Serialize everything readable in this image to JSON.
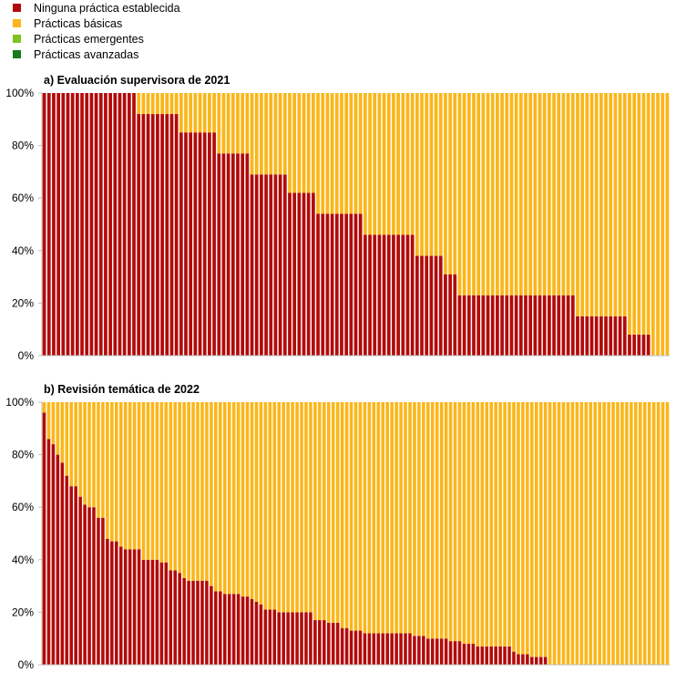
{
  "legend": [
    {
      "label": "Ninguna práctica establecida",
      "color": "#b20a0a"
    },
    {
      "label": "Prácticas básicas",
      "color": "#fbb619"
    },
    {
      "label": "Prácticas emergentes",
      "color": "#7ec31f"
    },
    {
      "label": "Prácticas avanzadas",
      "color": "#1a7a1a"
    }
  ],
  "chart_data": [
    {
      "type": "bar",
      "stacked": true,
      "title": "a) Evaluación supervisora de 2021",
      "ylim": [
        0,
        100
      ],
      "yticks": [
        "0%",
        "20%",
        "40%",
        "60%",
        "80%",
        "100%"
      ],
      "grid": false,
      "legend_position": "top-left",
      "series": [
        {
          "name": "Ninguna práctica establecida",
          "values": [
            100,
            100,
            100,
            100,
            100,
            100,
            100,
            100,
            100,
            100,
            100,
            100,
            100,
            100,
            100,
            100,
            100,
            100,
            100,
            100,
            92,
            92,
            92,
            92,
            92,
            92,
            92,
            92,
            92,
            85,
            85,
            85,
            85,
            85,
            85,
            85,
            85,
            77,
            77,
            77,
            77,
            77,
            77,
            77,
            69,
            69,
            69,
            69,
            69,
            69,
            69,
            69,
            62,
            62,
            62,
            62,
            62,
            62,
            54,
            54,
            54,
            54,
            54,
            54,
            54,
            54,
            54,
            54,
            46,
            46,
            46,
            46,
            46,
            46,
            46,
            46,
            46,
            46,
            46,
            38,
            38,
            38,
            38,
            38,
            38,
            31,
            31,
            31,
            23,
            23,
            23,
            23,
            23,
            23,
            23,
            23,
            23,
            23,
            23,
            23,
            23,
            23,
            23,
            23,
            23,
            23,
            23,
            23,
            23,
            23,
            23,
            23,
            23,
            15,
            15,
            15,
            15,
            15,
            15,
            15,
            15,
            15,
            15,
            15,
            8,
            8,
            8,
            8,
            8,
            0,
            0,
            0,
            0
          ]
        },
        {
          "name": "Prácticas básicas",
          "values": [
            0,
            0,
            0,
            0,
            0,
            0,
            0,
            0,
            0,
            0,
            0,
            0,
            0,
            0,
            0,
            0,
            0,
            0,
            0,
            0,
            8,
            8,
            8,
            8,
            8,
            8,
            8,
            8,
            8,
            15,
            15,
            15,
            15,
            15,
            15,
            15,
            15,
            23,
            23,
            23,
            23,
            23,
            23,
            23,
            31,
            31,
            31,
            31,
            31,
            31,
            31,
            31,
            38,
            38,
            38,
            38,
            38,
            38,
            46,
            46,
            46,
            46,
            46,
            46,
            46,
            46,
            46,
            46,
            54,
            54,
            54,
            54,
            54,
            54,
            54,
            54,
            54,
            54,
            54,
            62,
            62,
            62,
            62,
            62,
            62,
            69,
            69,
            69,
            77,
            77,
            77,
            77,
            77,
            77,
            77,
            77,
            77,
            77,
            77,
            77,
            77,
            77,
            77,
            77,
            77,
            77,
            77,
            77,
            77,
            77,
            77,
            77,
            77,
            85,
            85,
            85,
            85,
            85,
            85,
            85,
            85,
            85,
            85,
            85,
            92,
            92,
            92,
            92,
            92,
            100,
            100,
            100,
            100
          ]
        },
        {
          "name": "Prácticas emergentes",
          "values": [
            0,
            0,
            0,
            0,
            0,
            0,
            0,
            0,
            0,
            0,
            0,
            0,
            0,
            0,
            0,
            0,
            0,
            0,
            0,
            0,
            0,
            0,
            0,
            0,
            0,
            0,
            0,
            0,
            0,
            0,
            0,
            0,
            0,
            0,
            0,
            0,
            0,
            0,
            0,
            0,
            0,
            0,
            0,
            0,
            0,
            0,
            0,
            0,
            0,
            0,
            0,
            0,
            0,
            0,
            0,
            0,
            0,
            0,
            0,
            0,
            0,
            0,
            0,
            0,
            0,
            0,
            0,
            0,
            0,
            0,
            0,
            0,
            0,
            0,
            0,
            0,
            0,
            0,
            0,
            0,
            0,
            0,
            0,
            0,
            0,
            0,
            0,
            0,
            0,
            0,
            0,
            0,
            0,
            0,
            0,
            0,
            0,
            0,
            0,
            0,
            0,
            0,
            0,
            0,
            0,
            0,
            0,
            0,
            0,
            0,
            0,
            0,
            0,
            0,
            0,
            0,
            0,
            0,
            0,
            0,
            0,
            0,
            0,
            0,
            0,
            0,
            0,
            0,
            0,
            0,
            0,
            0,
            0
          ]
        },
        {
          "name": "Prácticas avanzadas",
          "values": [
            0,
            0,
            0,
            0,
            0,
            0,
            0,
            0,
            0,
            0,
            0,
            0,
            0,
            0,
            0,
            0,
            0,
            0,
            0,
            0,
            0,
            0,
            0,
            0,
            0,
            0,
            0,
            0,
            0,
            0,
            0,
            0,
            0,
            0,
            0,
            0,
            0,
            0,
            0,
            0,
            0,
            0,
            0,
            0,
            0,
            0,
            0,
            0,
            0,
            0,
            0,
            0,
            0,
            0,
            0,
            0,
            0,
            0,
            0,
            0,
            0,
            0,
            0,
            0,
            0,
            0,
            0,
            0,
            0,
            0,
            0,
            0,
            0,
            0,
            0,
            0,
            0,
            0,
            0,
            0,
            0,
            0,
            0,
            0,
            0,
            0,
            0,
            0,
            0,
            0,
            0,
            0,
            0,
            0,
            0,
            0,
            0,
            0,
            0,
            0,
            0,
            0,
            0,
            0,
            0,
            0,
            0,
            0,
            0,
            0,
            0,
            0,
            0,
            0,
            0,
            0,
            0,
            0,
            0,
            0,
            0,
            0,
            0,
            0,
            0,
            0,
            0,
            0,
            0,
            0,
            0,
            0,
            0
          ]
        }
      ]
    },
    {
      "type": "bar",
      "stacked": true,
      "title": "b) Revisión temática de 2022",
      "ylim": [
        0,
        100
      ],
      "yticks": [
        "0%",
        "20%",
        "40%",
        "60%",
        "80%",
        "100%"
      ],
      "grid": false,
      "series": [
        {
          "name": "Ninguna práctica establecida",
          "values": [
            96,
            86,
            84,
            80,
            77,
            72,
            68,
            68,
            64,
            61,
            60,
            60,
            56,
            56,
            48,
            47,
            47,
            45,
            44,
            44,
            44,
            44,
            40,
            40,
            40,
            40,
            39,
            39,
            36,
            36,
            35,
            33,
            32,
            32,
            32,
            32,
            32,
            30,
            28,
            28,
            27,
            27,
            27,
            27,
            26,
            26,
            25,
            24,
            23,
            21,
            21,
            21,
            20,
            20,
            20,
            20,
            20,
            20,
            20,
            20,
            17,
            17,
            17,
            16,
            16,
            16,
            14,
            14,
            13,
            13,
            13,
            12,
            12,
            12,
            12,
            12,
            12,
            12,
            12,
            12,
            12,
            12,
            11,
            11,
            11,
            10,
            10,
            10,
            10,
            10,
            9,
            9,
            9,
            8,
            8,
            8,
            7,
            7,
            7,
            7,
            7,
            7,
            7,
            7,
            5,
            4,
            4,
            4,
            3,
            3,
            3,
            3,
            0,
            0,
            0,
            0,
            0,
            0,
            0,
            0,
            0,
            0,
            0,
            0,
            0,
            0,
            0,
            0,
            0,
            0,
            0,
            0,
            0,
            0,
            0,
            0,
            0,
            0,
            0
          ]
        },
        {
          "name": "Prácticas básicas",
          "values": [
            4,
            14,
            16,
            20,
            23,
            28,
            32,
            32,
            36,
            39,
            40,
            40,
            44,
            44,
            52,
            53,
            53,
            55,
            56,
            56,
            56,
            56,
            60,
            60,
            60,
            60,
            61,
            61,
            64,
            64,
            65,
            67,
            68,
            68,
            68,
            68,
            68,
            70,
            72,
            72,
            73,
            73,
            73,
            73,
            74,
            74,
            75,
            76,
            77,
            79,
            79,
            79,
            80,
            80,
            80,
            80,
            80,
            80,
            80,
            80,
            83,
            83,
            83,
            84,
            84,
            84,
            86,
            86,
            87,
            87,
            87,
            88,
            88,
            88,
            88,
            88,
            88,
            88,
            88,
            88,
            88,
            88,
            89,
            89,
            89,
            90,
            90,
            90,
            90,
            90,
            91,
            91,
            91,
            92,
            92,
            92,
            93,
            93,
            93,
            93,
            93,
            93,
            93,
            93,
            95,
            96,
            96,
            96,
            97,
            97,
            97,
            97,
            100,
            100,
            100,
            100,
            100,
            100,
            100,
            100,
            100,
            100,
            100,
            100,
            100,
            100,
            100,
            100,
            100,
            100,
            100,
            100,
            100,
            100,
            100,
            100,
            100,
            100,
            100
          ]
        },
        {
          "name": "Prácticas emergentes",
          "values": [
            0,
            0,
            0,
            0,
            0,
            0,
            0,
            0,
            0,
            0,
            0,
            0,
            0,
            0,
            0,
            0,
            0,
            0,
            0,
            0,
            0,
            0,
            0,
            0,
            0,
            0,
            0,
            0,
            0,
            0,
            0,
            0,
            0,
            0,
            0,
            0,
            0,
            0,
            0,
            0,
            0,
            0,
            0,
            0,
            0,
            0,
            0,
            0,
            0,
            0,
            0,
            0,
            0,
            0,
            0,
            0,
            0,
            0,
            0,
            0,
            0,
            0,
            0,
            0,
            0,
            0,
            0,
            0,
            0,
            0,
            0,
            0,
            0,
            0,
            0,
            0,
            0,
            0,
            0,
            0,
            0,
            0,
            0,
            0,
            0,
            0,
            0,
            0,
            0,
            0,
            0,
            0,
            0,
            0,
            0,
            0,
            0,
            0,
            0,
            0,
            0,
            0,
            0,
            0,
            0,
            0,
            0,
            0,
            0,
            0,
            0,
            0,
            0,
            0,
            0,
            0,
            0,
            0,
            0,
            0,
            0,
            0,
            0,
            0,
            0,
            0,
            0,
            0,
            0,
            0,
            0,
            0,
            0,
            0,
            0,
            0,
            0,
            0,
            0
          ]
        },
        {
          "name": "Prácticas avanzadas",
          "values": [
            0,
            0,
            0,
            0,
            0,
            0,
            0,
            0,
            0,
            0,
            0,
            0,
            0,
            0,
            0,
            0,
            0,
            0,
            0,
            0,
            0,
            0,
            0,
            0,
            0,
            0,
            0,
            0,
            0,
            0,
            0,
            0,
            0,
            0,
            0,
            0,
            0,
            0,
            0,
            0,
            0,
            0,
            0,
            0,
            0,
            0,
            0,
            0,
            0,
            0,
            0,
            0,
            0,
            0,
            0,
            0,
            0,
            0,
            0,
            0,
            0,
            0,
            0,
            0,
            0,
            0,
            0,
            0,
            0,
            0,
            0,
            0,
            0,
            0,
            0,
            0,
            0,
            0,
            0,
            0,
            0,
            0,
            0,
            0,
            0,
            0,
            0,
            0,
            0,
            0,
            0,
            0,
            0,
            0,
            0,
            0,
            0,
            0,
            0,
            0,
            0,
            0,
            0,
            0,
            0,
            0,
            0,
            0,
            0,
            0,
            0,
            0,
            0,
            0,
            0,
            0,
            0,
            0,
            0,
            0,
            0,
            0,
            0,
            0,
            0,
            0,
            0,
            0,
            0,
            0,
            0,
            0,
            0,
            0,
            0,
            0,
            0,
            0,
            0
          ]
        }
      ]
    }
  ]
}
